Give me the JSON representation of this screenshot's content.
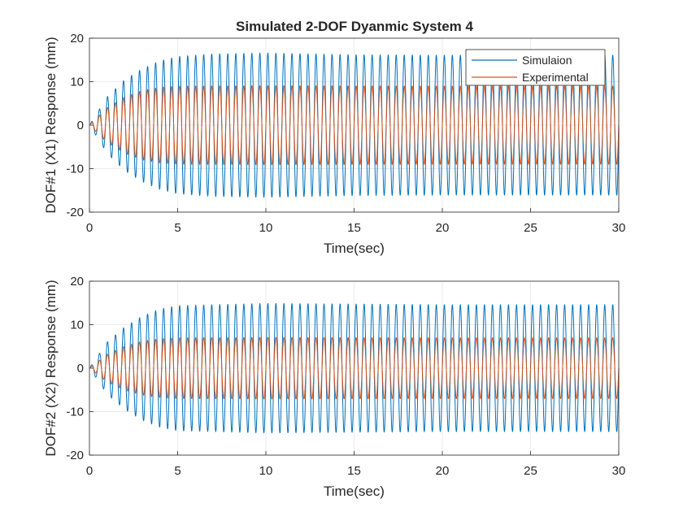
{
  "figure": {
    "title": "Simulated 2-DOF Dyanmic System 4"
  },
  "chart_data": [
    {
      "type": "line",
      "title": "Simulated 2-DOF Dyanmic System 4",
      "xlabel": "Time(sec)",
      "ylabel": "DOF#1 (X1) Response (mm)",
      "xlim": [
        0,
        30
      ],
      "ylim": [
        -20,
        20
      ],
      "x_ticks": [
        "0",
        "5",
        "10",
        "15",
        "20",
        "25",
        "30"
      ],
      "y_ticks": [
        "20",
        "10",
        "0",
        "-10",
        "-20"
      ],
      "grid": true,
      "legend_position": "top-right",
      "series": [
        {
          "name": "Simulaion",
          "color": "#0072BD",
          "frequency_hz": 2.2,
          "steady_amplitude": 16.2,
          "envelope_time_constant_s": 1.9,
          "envelope": [
            [
              0,
              0
            ],
            [
              1,
              6.5
            ],
            [
              2,
              10.5
            ],
            [
              3,
              13
            ],
            [
              4,
              14.8
            ],
            [
              5,
              15.8
            ],
            [
              7,
              16.4
            ],
            [
              10,
              16.6
            ],
            [
              15,
              16.2
            ],
            [
              20,
              16.1
            ],
            [
              30,
              16.1
            ]
          ]
        },
        {
          "name": "Experimental",
          "color": "#D95319",
          "frequency_hz": 2.2,
          "steady_amplitude": 9.0,
          "envelope_time_constant_s": 1.4,
          "envelope": [
            [
              0,
              0
            ],
            [
              1,
              4
            ],
            [
              2,
              6.5
            ],
            [
              3,
              8
            ],
            [
              4,
              8.7
            ],
            [
              5,
              9
            ],
            [
              10,
              9.1
            ],
            [
              20,
              9
            ],
            [
              30,
              9
            ]
          ]
        }
      ]
    },
    {
      "type": "line",
      "title": "",
      "xlabel": "Time(sec)",
      "ylabel": "DOF#2 (X2) Response (mm)",
      "xlim": [
        0,
        30
      ],
      "ylim": [
        -20,
        20
      ],
      "x_ticks": [
        "0",
        "5",
        "10",
        "15",
        "20",
        "25",
        "30"
      ],
      "y_ticks": [
        "20",
        "10",
        "0",
        "-10",
        "-20"
      ],
      "grid": true,
      "series": [
        {
          "color": "#0072BD",
          "frequency_hz": 2.2,
          "steady_amplitude": 14.6,
          "envelope_time_constant_s": 1.8,
          "envelope": [
            [
              0,
              0
            ],
            [
              1,
              6
            ],
            [
              2,
              9.5
            ],
            [
              3,
              12
            ],
            [
              4,
              13.6
            ],
            [
              5,
              14.4
            ],
            [
              10,
              14.9
            ],
            [
              20,
              14.6
            ],
            [
              30,
              14.6
            ]
          ]
        },
        {
          "color": "#D95319",
          "frequency_hz": 2.2,
          "steady_amplitude": 7.0,
          "envelope_time_constant_s": 1.4,
          "envelope": [
            [
              0,
              0
            ],
            [
              1,
              3.2
            ],
            [
              2,
              5.1
            ],
            [
              3,
              6.2
            ],
            [
              4,
              6.8
            ],
            [
              5,
              7
            ],
            [
              10,
              7.1
            ],
            [
              20,
              7
            ],
            [
              30,
              7
            ]
          ]
        }
      ]
    }
  ]
}
